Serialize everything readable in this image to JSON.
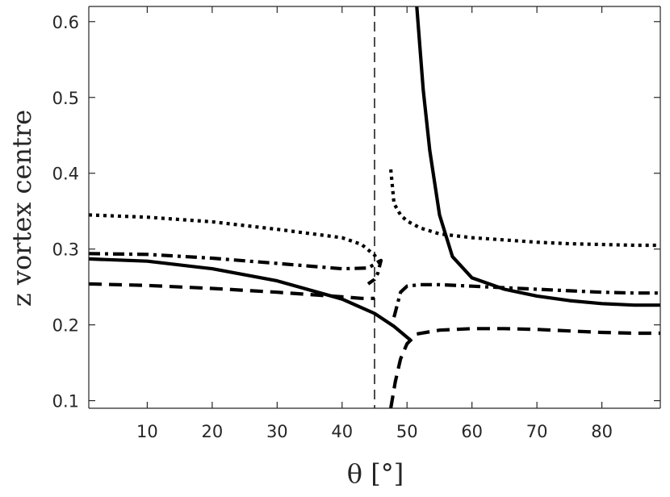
{
  "chart_data": {
    "type": "line",
    "title": "",
    "xlabel": "θ [°]",
    "ylabel": "z vortex centre",
    "xlim": [
      1,
      89
    ],
    "ylim": [
      0.09,
      0.62
    ],
    "x_ticks": [
      10,
      20,
      30,
      40,
      50,
      60,
      70,
      80
    ],
    "y_ticks": [
      0.1,
      0.2,
      0.3,
      0.4,
      0.5,
      0.6
    ],
    "x_tick_labels": [
      "10",
      "20",
      "30",
      "40",
      "50",
      "60",
      "70",
      "80"
    ],
    "y_tick_labels": [
      "0.1",
      "0.2",
      "0.3",
      "0.4",
      "0.5",
      "0.6"
    ],
    "grid": false,
    "legend": "none",
    "reference_lines": [
      {
        "axis": "x",
        "value": 45,
        "style": "dashed"
      }
    ],
    "series": [
      {
        "style": "solid",
        "color": "#000000",
        "segments": [
          {
            "x": [
              1,
              10,
              20,
              30,
              40,
              45,
              48,
              50.5
            ],
            "y": [
              0.287,
              0.284,
              0.274,
              0.258,
              0.234,
              0.215,
              0.198,
              0.18
            ]
          },
          {
            "x": [
              51.5,
              52.5,
              53.5,
              55,
              57,
              60,
              65,
              70,
              75,
              80,
              85,
              89
            ],
            "y": [
              0.62,
              0.51,
              0.43,
              0.345,
              0.29,
              0.262,
              0.247,
              0.238,
              0.232,
              0.228,
              0.226,
              0.226
            ]
          }
        ]
      },
      {
        "style": "dashed",
        "color": "#000000",
        "segments": [
          {
            "x": [
              1,
              10,
              20,
              30,
              40,
              43,
              45
            ],
            "y": [
              0.254,
              0.252,
              0.248,
              0.243,
              0.237,
              0.235,
              0.235
            ]
          },
          {
            "x": [
              47.5,
              48.2,
              49,
              50,
              51.5,
              55,
              60,
              65,
              70,
              75,
              80,
              85,
              89
            ],
            "y": [
              0.09,
              0.125,
              0.155,
              0.175,
              0.188,
              0.193,
              0.195,
              0.195,
              0.194,
              0.192,
              0.19,
              0.189,
              0.189
            ]
          }
        ]
      },
      {
        "style": "dotted",
        "color": "#000000",
        "segments": [
          {
            "x": [
              1,
              10,
              20,
              30,
              40,
              43,
              45,
              46
            ],
            "y": [
              0.345,
              0.342,
              0.336,
              0.326,
              0.315,
              0.306,
              0.292,
              0.278
            ]
          },
          {
            "x": [
              47.5,
              48,
              49,
              50,
              52,
              55,
              60,
              65,
              70,
              75,
              80,
              85,
              89
            ],
            "y": [
              0.405,
              0.36,
              0.345,
              0.337,
              0.328,
              0.32,
              0.315,
              0.312,
              0.309,
              0.307,
              0.306,
              0.305,
              0.305
            ]
          }
        ]
      },
      {
        "style": "dashdot",
        "color": "#000000",
        "segments": [
          {
            "x": [
              1,
              10,
              20,
              30,
              40,
              44,
              46,
              45.5,
              45,
              44
            ],
            "y": [
              0.294,
              0.293,
              0.288,
              0.281,
              0.274,
              0.275,
              0.285,
              0.268,
              0.26,
              0.254
            ]
          },
          {
            "x": [
              48,
              49,
              50,
              52,
              55,
              60,
              65,
              70,
              75,
              80,
              85,
              89
            ],
            "y": [
              0.21,
              0.243,
              0.251,
              0.253,
              0.253,
              0.251,
              0.249,
              0.247,
              0.245,
              0.243,
              0.242,
              0.242
            ]
          }
        ]
      }
    ]
  }
}
